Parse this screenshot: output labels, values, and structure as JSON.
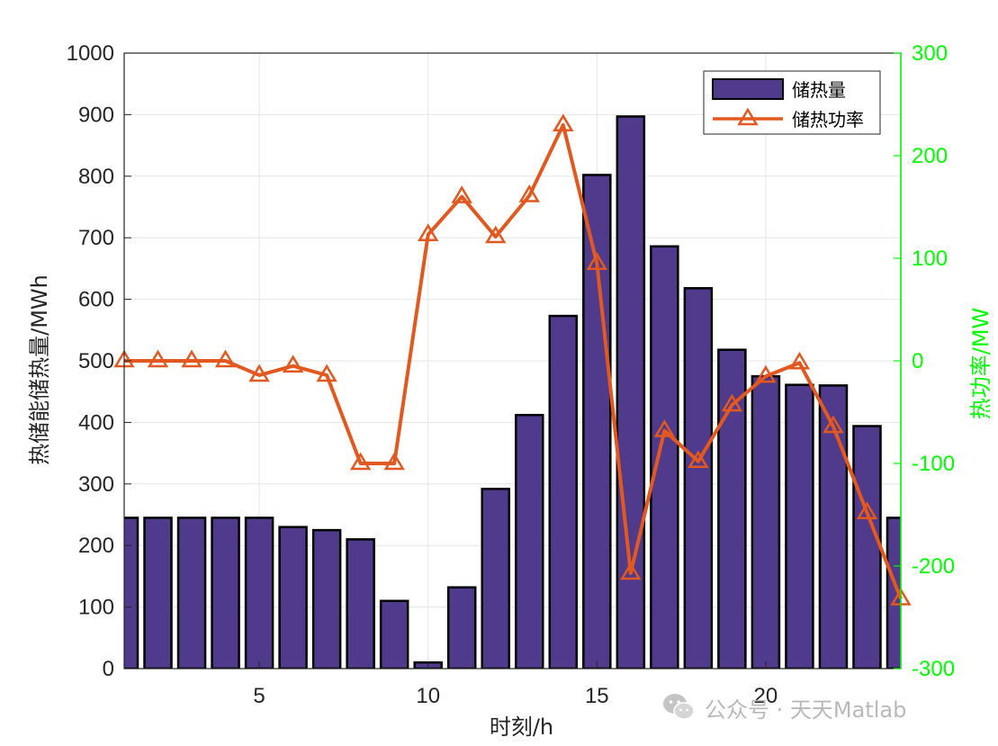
{
  "chart_data": {
    "type": "bar+line",
    "xlabel": "时刻/h",
    "ylabel_left": "热储能储热量/MWh",
    "ylabel_right": "热功率/MW",
    "xlim": [
      1,
      24
    ],
    "xticks": [
      5,
      10,
      15,
      20
    ],
    "ylim_left": [
      0,
      1000
    ],
    "yticks_left": [
      0,
      100,
      200,
      300,
      400,
      500,
      600,
      700,
      800,
      900,
      1000
    ],
    "ylim_right": [
      -300,
      300
    ],
    "yticks_right": [
      -300,
      -200,
      -100,
      0,
      100,
      200,
      300
    ],
    "grid": true,
    "legend_position": "top-right",
    "x": [
      1,
      2,
      3,
      4,
      5,
      6,
      7,
      8,
      9,
      10,
      11,
      12,
      13,
      14,
      15,
      16,
      17,
      18,
      19,
      20,
      21,
      22,
      23,
      24
    ],
    "series": [
      {
        "name": "储热量",
        "kind": "bar",
        "axis": "left",
        "color": "#4F3A8B",
        "values": [
          245,
          245,
          245,
          245,
          245,
          230,
          225,
          210,
          110,
          10,
          132,
          292,
          412,
          573,
          802,
          897,
          686,
          618,
          518,
          475,
          461,
          460,
          394,
          245
        ]
      },
      {
        "name": "储热功率",
        "kind": "line",
        "axis": "right",
        "color": "#E3581E",
        "marker": "triangle",
        "values": [
          0,
          0,
          0,
          0,
          -14,
          -5,
          -14,
          -100,
          -100,
          123,
          160,
          121,
          161,
          230,
          95,
          -207,
          -68,
          -98,
          -43,
          -15,
          -2,
          -64,
          -148,
          -232
        ]
      }
    ]
  },
  "colors": {
    "bar_fill": "#4F3A8B",
    "line": "#E3581E",
    "right_axis": "#00FF00",
    "grid": "#E6E6E6"
  },
  "watermark": {
    "text": "公众号 · 天天Matlab",
    "icon": "wechat-icon"
  }
}
